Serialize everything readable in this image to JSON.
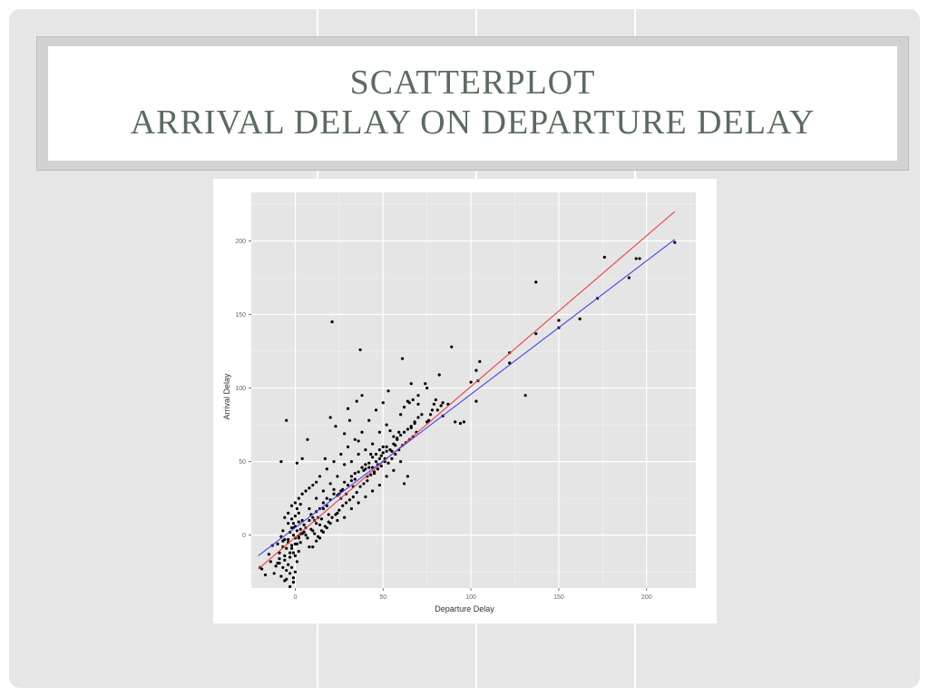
{
  "slide": {
    "title_line1": "SCATTERPLOT",
    "title_line2": "ARRIVAL DELAY ON DEPARTURE DELAY"
  },
  "chart_data": {
    "type": "scatter",
    "xlabel": "Departure Delay",
    "ylabel": "Arrival Delay",
    "xlim": [
      -25,
      228
    ],
    "ylim": [
      -36,
      233
    ],
    "x_ticks": [
      0,
      50,
      100,
      150,
      200
    ],
    "y_ticks": [
      0,
      50,
      100,
      150,
      200
    ],
    "grid": true,
    "background": "#e5e5e5",
    "point_color": "#000000",
    "lines": [
      {
        "color": "#ee4444",
        "x": [
          -21,
          216
        ],
        "y": [
          -23,
          220
        ]
      },
      {
        "color": "#4444ee",
        "x": [
          -21,
          216
        ],
        "y": [
          -14,
          201
        ]
      }
    ],
    "points": [
      [
        216,
        199
      ],
      [
        196,
        188
      ],
      [
        194,
        188
      ],
      [
        190,
        175
      ],
      [
        176,
        189
      ],
      [
        172,
        161
      ],
      [
        162,
        147
      ],
      [
        150,
        146
      ],
      [
        150,
        141
      ],
      [
        137,
        137
      ],
      [
        137,
        172
      ],
      [
        131,
        95
      ],
      [
        122,
        117
      ],
      [
        122,
        124
      ],
      [
        105,
        118
      ],
      [
        104,
        105
      ],
      [
        103,
        112
      ],
      [
        103,
        91
      ],
      [
        100,
        104
      ],
      [
        96,
        77
      ],
      [
        94,
        76
      ],
      [
        91,
        77
      ],
      [
        89,
        128
      ],
      [
        87,
        89
      ],
      [
        84,
        90
      ],
      [
        84,
        81
      ],
      [
        83,
        88
      ],
      [
        82,
        109
      ],
      [
        81,
        85
      ],
      [
        80,
        92
      ],
      [
        79,
        89
      ],
      [
        78,
        85
      ],
      [
        77,
        82
      ],
      [
        76,
        78
      ],
      [
        75,
        77
      ],
      [
        74,
        103
      ],
      [
        70,
        89
      ],
      [
        68,
        77
      ],
      [
        67,
        92
      ],
      [
        66,
        74
      ],
      [
        66,
        103
      ],
      [
        64,
        91
      ],
      [
        62,
        87
      ],
      [
        61,
        120
      ],
      [
        59,
        70
      ],
      [
        58,
        65
      ],
      [
        57,
        61
      ],
      [
        56,
        67
      ],
      [
        55,
        57
      ],
      [
        54,
        71
      ],
      [
        53,
        98
      ],
      [
        52,
        57
      ],
      [
        51,
        52
      ],
      [
        50,
        60
      ],
      [
        49,
        54
      ],
      [
        48,
        52
      ],
      [
        47,
        48
      ],
      [
        46,
        50
      ],
      [
        45,
        42
      ],
      [
        44,
        46
      ],
      [
        43,
        55
      ],
      [
        42,
        46
      ],
      [
        41,
        40
      ],
      [
        40,
        45
      ],
      [
        39,
        44
      ],
      [
        38,
        95
      ],
      [
        37,
        126
      ],
      [
        36,
        64
      ],
      [
        35,
        91
      ],
      [
        34,
        42
      ],
      [
        33,
        33
      ],
      [
        32,
        37
      ],
      [
        31,
        78
      ],
      [
        30,
        86
      ],
      [
        29,
        28
      ],
      [
        28,
        69
      ],
      [
        27,
        31
      ],
      [
        26,
        25
      ],
      [
        25,
        28
      ],
      [
        24,
        15
      ],
      [
        23,
        74
      ],
      [
        22,
        31
      ],
      [
        21,
        145
      ],
      [
        20,
        80
      ],
      [
        19,
        14
      ],
      [
        18,
        20
      ],
      [
        17,
        52
      ],
      [
        16,
        18
      ],
      [
        15,
        11
      ],
      [
        14,
        7
      ],
      [
        13,
        12
      ],
      [
        12,
        8
      ],
      [
        11,
        10
      ],
      [
        10,
        3
      ],
      [
        9,
        14
      ],
      [
        8,
        -8
      ],
      [
        7,
        65
      ],
      [
        6,
        0
      ],
      [
        5,
        2
      ],
      [
        4,
        52
      ],
      [
        3,
        1
      ],
      [
        2,
        -2
      ],
      [
        1,
        49
      ],
      [
        0,
        -6
      ],
      [
        -1,
        5
      ],
      [
        -2,
        -9
      ],
      [
        -3,
        -12
      ],
      [
        -4,
        -3
      ],
      [
        -5,
        78
      ],
      [
        -6,
        -14
      ],
      [
        -7,
        -4
      ],
      [
        -8,
        50
      ],
      [
        -9,
        -16
      ],
      [
        -10,
        -19
      ],
      [
        -11,
        -21
      ],
      [
        -12,
        -26
      ],
      [
        -13,
        -7
      ],
      [
        -14,
        -18
      ],
      [
        -15,
        -13
      ],
      [
        -17,
        -27
      ],
      [
        -19,
        -23
      ],
      [
        -20,
        -22
      ],
      [
        -3,
        -35
      ],
      [
        -1,
        -32
      ],
      [
        -6,
        -31
      ],
      [
        -8,
        -28
      ],
      [
        0,
        -25
      ],
      [
        -2,
        -22
      ],
      [
        -4,
        -20
      ],
      [
        1,
        -18
      ],
      [
        -6,
        -17
      ],
      [
        -3,
        -15
      ],
      [
        0,
        -14
      ],
      [
        -1,
        -12
      ],
      [
        2,
        -11
      ],
      [
        -5,
        -9
      ],
      [
        -7,
        -8
      ],
      [
        -2,
        -7
      ],
      [
        1,
        -6
      ],
      [
        3,
        -5
      ],
      [
        -4,
        -5
      ],
      [
        -6,
        -3
      ],
      [
        0,
        -2
      ],
      [
        2,
        -1
      ],
      [
        -1,
        0
      ],
      [
        4,
        1
      ],
      [
        -3,
        2
      ],
      [
        1,
        3
      ],
      [
        3,
        4
      ],
      [
        -2,
        5
      ],
      [
        0,
        6
      ],
      [
        5,
        7
      ],
      [
        -1,
        8
      ],
      [
        2,
        9
      ],
      [
        4,
        10
      ],
      [
        -5,
        -24
      ],
      [
        -9,
        -12
      ],
      [
        -10,
        -6
      ],
      [
        -8,
        -1
      ],
      [
        -7,
        3
      ],
      [
        -4,
        8
      ],
      [
        -2,
        11
      ],
      [
        0,
        13
      ],
      [
        2,
        15
      ],
      [
        1,
        18
      ],
      [
        3,
        21
      ],
      [
        -1,
        -29
      ],
      [
        -3,
        -26
      ],
      [
        -5,
        -30
      ],
      [
        -7,
        -22
      ],
      [
        -9,
        -19
      ],
      [
        6,
        5
      ],
      [
        8,
        10
      ],
      [
        10,
        12
      ],
      [
        12,
        16
      ],
      [
        14,
        18
      ],
      [
        16,
        22
      ],
      [
        18,
        25
      ],
      [
        20,
        24
      ],
      [
        22,
        28
      ],
      [
        24,
        27
      ],
      [
        26,
        30
      ],
      [
        28,
        36
      ],
      [
        30,
        34
      ],
      [
        32,
        40
      ],
      [
        34,
        38
      ],
      [
        36,
        43
      ],
      [
        38,
        46
      ],
      [
        40,
        48
      ],
      [
        42,
        49
      ],
      [
        44,
        53
      ],
      [
        46,
        55
      ],
      [
        48,
        58
      ],
      [
        50,
        56
      ],
      [
        52,
        60
      ],
      [
        54,
        58
      ],
      [
        56,
        62
      ],
      [
        58,
        66
      ],
      [
        60,
        68
      ],
      [
        62,
        70
      ],
      [
        64,
        72
      ],
      [
        66,
        73
      ],
      [
        68,
        76
      ],
      [
        70,
        80
      ],
      [
        72,
        82
      ],
      [
        7,
        -2
      ],
      [
        9,
        4
      ],
      [
        11,
        1
      ],
      [
        13,
        -1
      ],
      [
        15,
        3
      ],
      [
        17,
        6
      ],
      [
        19,
        9
      ],
      [
        21,
        12
      ],
      [
        23,
        14
      ],
      [
        25,
        17
      ],
      [
        27,
        20
      ],
      [
        29,
        22
      ],
      [
        31,
        24
      ],
      [
        33,
        26
      ],
      [
        35,
        29
      ],
      [
        37,
        33
      ],
      [
        39,
        35
      ],
      [
        41,
        37
      ],
      [
        43,
        41
      ],
      [
        45,
        43
      ],
      [
        47,
        45
      ],
      [
        49,
        47
      ],
      [
        51,
        50
      ],
      [
        53,
        49
      ],
      [
        55,
        52
      ],
      [
        57,
        55
      ],
      [
        59,
        58
      ],
      [
        61,
        61
      ],
      [
        63,
        63
      ],
      [
        65,
        65
      ],
      [
        67,
        67
      ],
      [
        69,
        70
      ],
      [
        10,
        -8
      ],
      [
        12,
        -4
      ],
      [
        14,
        -2
      ],
      [
        16,
        2
      ],
      [
        18,
        5
      ],
      [
        20,
        8
      ],
      [
        24,
        10
      ],
      [
        28,
        12
      ],
      [
        32,
        18
      ],
      [
        36,
        22
      ],
      [
        40,
        26
      ],
      [
        44,
        30
      ],
      [
        48,
        34
      ],
      [
        52,
        40
      ],
      [
        56,
        44
      ],
      [
        60,
        50
      ],
      [
        62,
        35
      ],
      [
        64,
        40
      ],
      [
        8,
        18
      ],
      [
        12,
        25
      ],
      [
        16,
        30
      ],
      [
        20,
        35
      ],
      [
        24,
        40
      ],
      [
        28,
        48
      ],
      [
        32,
        50
      ],
      [
        36,
        55
      ],
      [
        40,
        58
      ],
      [
        44,
        62
      ],
      [
        48,
        70
      ],
      [
        52,
        75
      ],
      [
        60,
        82
      ],
      [
        65,
        90
      ],
      [
        70,
        95
      ],
      [
        75,
        100
      ],
      [
        -2,
        20
      ],
      [
        0,
        22
      ],
      [
        2,
        25
      ],
      [
        4,
        28
      ],
      [
        -4,
        15
      ],
      [
        -6,
        12
      ],
      [
        6,
        30
      ],
      [
        8,
        32
      ],
      [
        10,
        34
      ],
      [
        12,
        36
      ],
      [
        14,
        40
      ],
      [
        18,
        45
      ],
      [
        22,
        50
      ],
      [
        26,
        55
      ],
      [
        30,
        60
      ],
      [
        34,
        65
      ],
      [
        38,
        70
      ],
      [
        42,
        78
      ],
      [
        46,
        85
      ],
      [
        50,
        90
      ]
    ]
  }
}
